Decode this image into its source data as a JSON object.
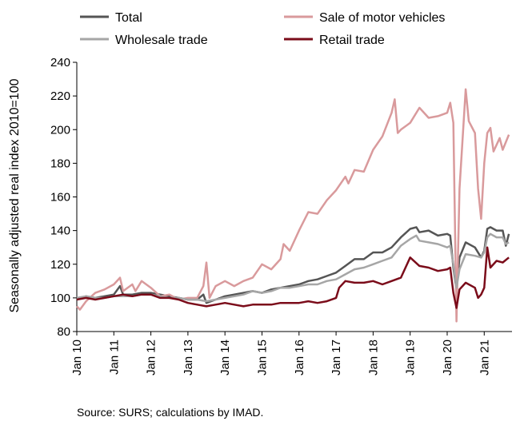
{
  "chart_data": {
    "type": "line",
    "ylabel": "Seasonally adjusted real index 2010=100",
    "ylim": [
      80,
      240
    ],
    "y_ticks": [
      80,
      100,
      120,
      140,
      160,
      180,
      200,
      220,
      240
    ],
    "x_range": [
      "2010-01",
      "2021-10"
    ],
    "x_tick_labels": [
      "Jan 10",
      "Jan 11",
      "Jan 12",
      "Jan 13",
      "Jan 14",
      "Jan 15",
      "Jan 16",
      "Jan 17",
      "Jan 18",
      "Jan 19",
      "Jan 20",
      "Jan 21"
    ],
    "grid": false,
    "legend_position": "top",
    "series": [
      {
        "name": "Total",
        "color": "#555555",
        "points": [
          [
            "2010-01",
            99
          ],
          [
            "2010-04",
            101
          ],
          [
            "2010-07",
            100
          ],
          [
            "2010-10",
            101
          ],
          [
            "2011-01",
            102
          ],
          [
            "2011-03",
            107
          ],
          [
            "2011-04",
            102
          ],
          [
            "2011-07",
            102
          ],
          [
            "2011-10",
            103
          ],
          [
            "2012-01",
            103
          ],
          [
            "2012-04",
            102
          ],
          [
            "2012-07",
            101
          ],
          [
            "2012-10",
            100
          ],
          [
            "2013-01",
            99
          ],
          [
            "2013-04",
            99
          ],
          [
            "2013-06",
            102
          ],
          [
            "2013-07",
            97
          ],
          [
            "2013-10",
            99
          ],
          [
            "2014-01",
            101
          ],
          [
            "2014-04",
            102
          ],
          [
            "2014-07",
            103
          ],
          [
            "2014-10",
            104
          ],
          [
            "2015-01",
            103
          ],
          [
            "2015-04",
            105
          ],
          [
            "2015-07",
            106
          ],
          [
            "2015-10",
            107
          ],
          [
            "2016-01",
            108
          ],
          [
            "2016-04",
            110
          ],
          [
            "2016-07",
            111
          ],
          [
            "2016-10",
            113
          ],
          [
            "2017-01",
            115
          ],
          [
            "2017-04",
            119
          ],
          [
            "2017-07",
            123
          ],
          [
            "2017-10",
            123
          ],
          [
            "2018-01",
            127
          ],
          [
            "2018-04",
            127
          ],
          [
            "2018-07",
            130
          ],
          [
            "2018-10",
            136
          ],
          [
            "2019-01",
            141
          ],
          [
            "2019-03",
            142
          ],
          [
            "2019-04",
            139
          ],
          [
            "2019-07",
            140
          ],
          [
            "2019-10",
            137
          ],
          [
            "2020-01",
            138
          ],
          [
            "2020-02",
            137
          ],
          [
            "2020-03",
            118
          ],
          [
            "2020-04",
            105
          ],
          [
            "2020-05",
            124
          ],
          [
            "2020-07",
            133
          ],
          [
            "2020-10",
            130
          ],
          [
            "2020-12",
            124
          ],
          [
            "2021-01",
            128
          ],
          [
            "2021-02",
            141
          ],
          [
            "2021-03",
            142
          ],
          [
            "2021-05",
            140
          ],
          [
            "2021-07",
            140
          ],
          [
            "2021-08",
            131
          ],
          [
            "2021-09",
            138
          ]
        ]
      },
      {
        "name": "Sale of motor vehicles",
        "color": "#d99a9c",
        "points": [
          [
            "2010-01",
            95
          ],
          [
            "2010-02",
            93
          ],
          [
            "2010-04",
            98
          ],
          [
            "2010-07",
            103
          ],
          [
            "2010-10",
            105
          ],
          [
            "2011-01",
            108
          ],
          [
            "2011-03",
            112
          ],
          [
            "2011-04",
            104
          ],
          [
            "2011-07",
            108
          ],
          [
            "2011-08",
            104
          ],
          [
            "2011-10",
            110
          ],
          [
            "2012-01",
            106
          ],
          [
            "2012-04",
            101
          ],
          [
            "2012-07",
            102
          ],
          [
            "2012-10",
            99
          ],
          [
            "2013-01",
            100
          ],
          [
            "2013-04",
            100
          ],
          [
            "2013-06",
            107
          ],
          [
            "2013-07",
            121
          ],
          [
            "2013-08",
            100
          ],
          [
            "2013-10",
            107
          ],
          [
            "2014-01",
            110
          ],
          [
            "2014-04",
            107
          ],
          [
            "2014-07",
            110
          ],
          [
            "2014-10",
            112
          ],
          [
            "2015-01",
            120
          ],
          [
            "2015-04",
            117
          ],
          [
            "2015-07",
            123
          ],
          [
            "2015-08",
            132
          ],
          [
            "2015-10",
            128
          ],
          [
            "2016-01",
            140
          ],
          [
            "2016-04",
            151
          ],
          [
            "2016-07",
            150
          ],
          [
            "2016-10",
            158
          ],
          [
            "2017-01",
            164
          ],
          [
            "2017-04",
            172
          ],
          [
            "2017-05",
            168
          ],
          [
            "2017-07",
            176
          ],
          [
            "2017-10",
            175
          ],
          [
            "2018-01",
            188
          ],
          [
            "2018-04",
            196
          ],
          [
            "2018-07",
            210
          ],
          [
            "2018-08",
            218
          ],
          [
            "2018-09",
            198
          ],
          [
            "2018-10",
            200
          ],
          [
            "2019-01",
            204
          ],
          [
            "2019-04",
            213
          ],
          [
            "2019-07",
            207
          ],
          [
            "2019-10",
            208
          ],
          [
            "2020-01",
            210
          ],
          [
            "2020-02",
            216
          ],
          [
            "2020-03",
            204
          ],
          [
            "2020-04",
            86
          ],
          [
            "2020-05",
            165
          ],
          [
            "2020-07",
            224
          ],
          [
            "2020-08",
            205
          ],
          [
            "2020-10",
            198
          ],
          [
            "2020-11",
            165
          ],
          [
            "2020-12",
            147
          ],
          [
            "2021-01",
            180
          ],
          [
            "2021-02",
            198
          ],
          [
            "2021-03",
            201
          ],
          [
            "2021-04",
            187
          ],
          [
            "2021-06",
            195
          ],
          [
            "2021-07",
            188
          ],
          [
            "2021-09",
            197
          ]
        ]
      },
      {
        "name": "Wholesale trade",
        "color": "#a6a6a6",
        "points": [
          [
            "2010-01",
            100
          ],
          [
            "2010-04",
            101
          ],
          [
            "2010-07",
            100
          ],
          [
            "2010-10",
            100
          ],
          [
            "2011-01",
            101
          ],
          [
            "2011-04",
            101
          ],
          [
            "2011-07",
            101
          ],
          [
            "2011-10",
            102
          ],
          [
            "2012-01",
            102
          ],
          [
            "2012-04",
            101
          ],
          [
            "2012-07",
            100
          ],
          [
            "2012-10",
            100
          ],
          [
            "2013-01",
            99
          ],
          [
            "2013-04",
            99
          ],
          [
            "2013-07",
            98
          ],
          [
            "2013-10",
            99
          ],
          [
            "2014-01",
            100
          ],
          [
            "2014-04",
            101
          ],
          [
            "2014-07",
            102
          ],
          [
            "2014-10",
            104
          ],
          [
            "2015-01",
            103
          ],
          [
            "2015-04",
            104
          ],
          [
            "2015-07",
            106
          ],
          [
            "2015-10",
            106
          ],
          [
            "2016-01",
            107
          ],
          [
            "2016-04",
            108
          ],
          [
            "2016-07",
            108
          ],
          [
            "2016-10",
            110
          ],
          [
            "2017-01",
            111
          ],
          [
            "2017-04",
            114
          ],
          [
            "2017-07",
            117
          ],
          [
            "2017-10",
            118
          ],
          [
            "2018-01",
            120
          ],
          [
            "2018-04",
            122
          ],
          [
            "2018-07",
            124
          ],
          [
            "2018-10",
            131
          ],
          [
            "2019-01",
            135
          ],
          [
            "2019-03",
            137
          ],
          [
            "2019-04",
            134
          ],
          [
            "2019-07",
            133
          ],
          [
            "2019-10",
            132
          ],
          [
            "2020-01",
            130
          ],
          [
            "2020-02",
            131
          ],
          [
            "2020-03",
            120
          ],
          [
            "2020-04",
            106
          ],
          [
            "2020-05",
            117
          ],
          [
            "2020-07",
            126
          ],
          [
            "2020-10",
            125
          ],
          [
            "2020-12",
            124
          ],
          [
            "2021-01",
            127
          ],
          [
            "2021-02",
            136
          ],
          [
            "2021-03",
            138
          ],
          [
            "2021-05",
            136
          ],
          [
            "2021-07",
            136
          ],
          [
            "2021-08",
            132
          ],
          [
            "2021-09",
            133
          ]
        ]
      },
      {
        "name": "Retail trade",
        "color": "#7b0c1a",
        "points": [
          [
            "2010-01",
            99
          ],
          [
            "2010-04",
            100
          ],
          [
            "2010-07",
            99
          ],
          [
            "2010-10",
            100
          ],
          [
            "2011-01",
            101
          ],
          [
            "2011-04",
            102
          ],
          [
            "2011-07",
            101
          ],
          [
            "2011-10",
            102
          ],
          [
            "2012-01",
            102
          ],
          [
            "2012-04",
            100
          ],
          [
            "2012-07",
            100
          ],
          [
            "2012-10",
            99
          ],
          [
            "2013-01",
            97
          ],
          [
            "2013-04",
            96
          ],
          [
            "2013-07",
            95
          ],
          [
            "2013-10",
            96
          ],
          [
            "2014-01",
            97
          ],
          [
            "2014-04",
            96
          ],
          [
            "2014-07",
            95
          ],
          [
            "2014-10",
            96
          ],
          [
            "2015-01",
            96
          ],
          [
            "2015-04",
            96
          ],
          [
            "2015-07",
            97
          ],
          [
            "2015-10",
            97
          ],
          [
            "2016-01",
            97
          ],
          [
            "2016-04",
            98
          ],
          [
            "2016-07",
            97
          ],
          [
            "2016-10",
            98
          ],
          [
            "2017-01",
            100
          ],
          [
            "2017-02",
            106
          ],
          [
            "2017-04",
            110
          ],
          [
            "2017-07",
            109
          ],
          [
            "2017-10",
            109
          ],
          [
            "2018-01",
            110
          ],
          [
            "2018-04",
            108
          ],
          [
            "2018-07",
            110
          ],
          [
            "2018-10",
            112
          ],
          [
            "2019-01",
            124
          ],
          [
            "2019-04",
            119
          ],
          [
            "2019-07",
            118
          ],
          [
            "2019-10",
            116
          ],
          [
            "2020-01",
            117
          ],
          [
            "2020-02",
            118
          ],
          [
            "2020-03",
            103
          ],
          [
            "2020-04",
            94
          ],
          [
            "2020-05",
            105
          ],
          [
            "2020-07",
            109
          ],
          [
            "2020-10",
            106
          ],
          [
            "2020-11",
            100
          ],
          [
            "2020-12",
            102
          ],
          [
            "2021-01",
            106
          ],
          [
            "2021-02",
            130
          ],
          [
            "2021-03",
            118
          ],
          [
            "2021-05",
            122
          ],
          [
            "2021-07",
            121
          ],
          [
            "2021-09",
            124
          ]
        ]
      }
    ]
  },
  "source_note": "Source: SURS; calculations by IMAD."
}
